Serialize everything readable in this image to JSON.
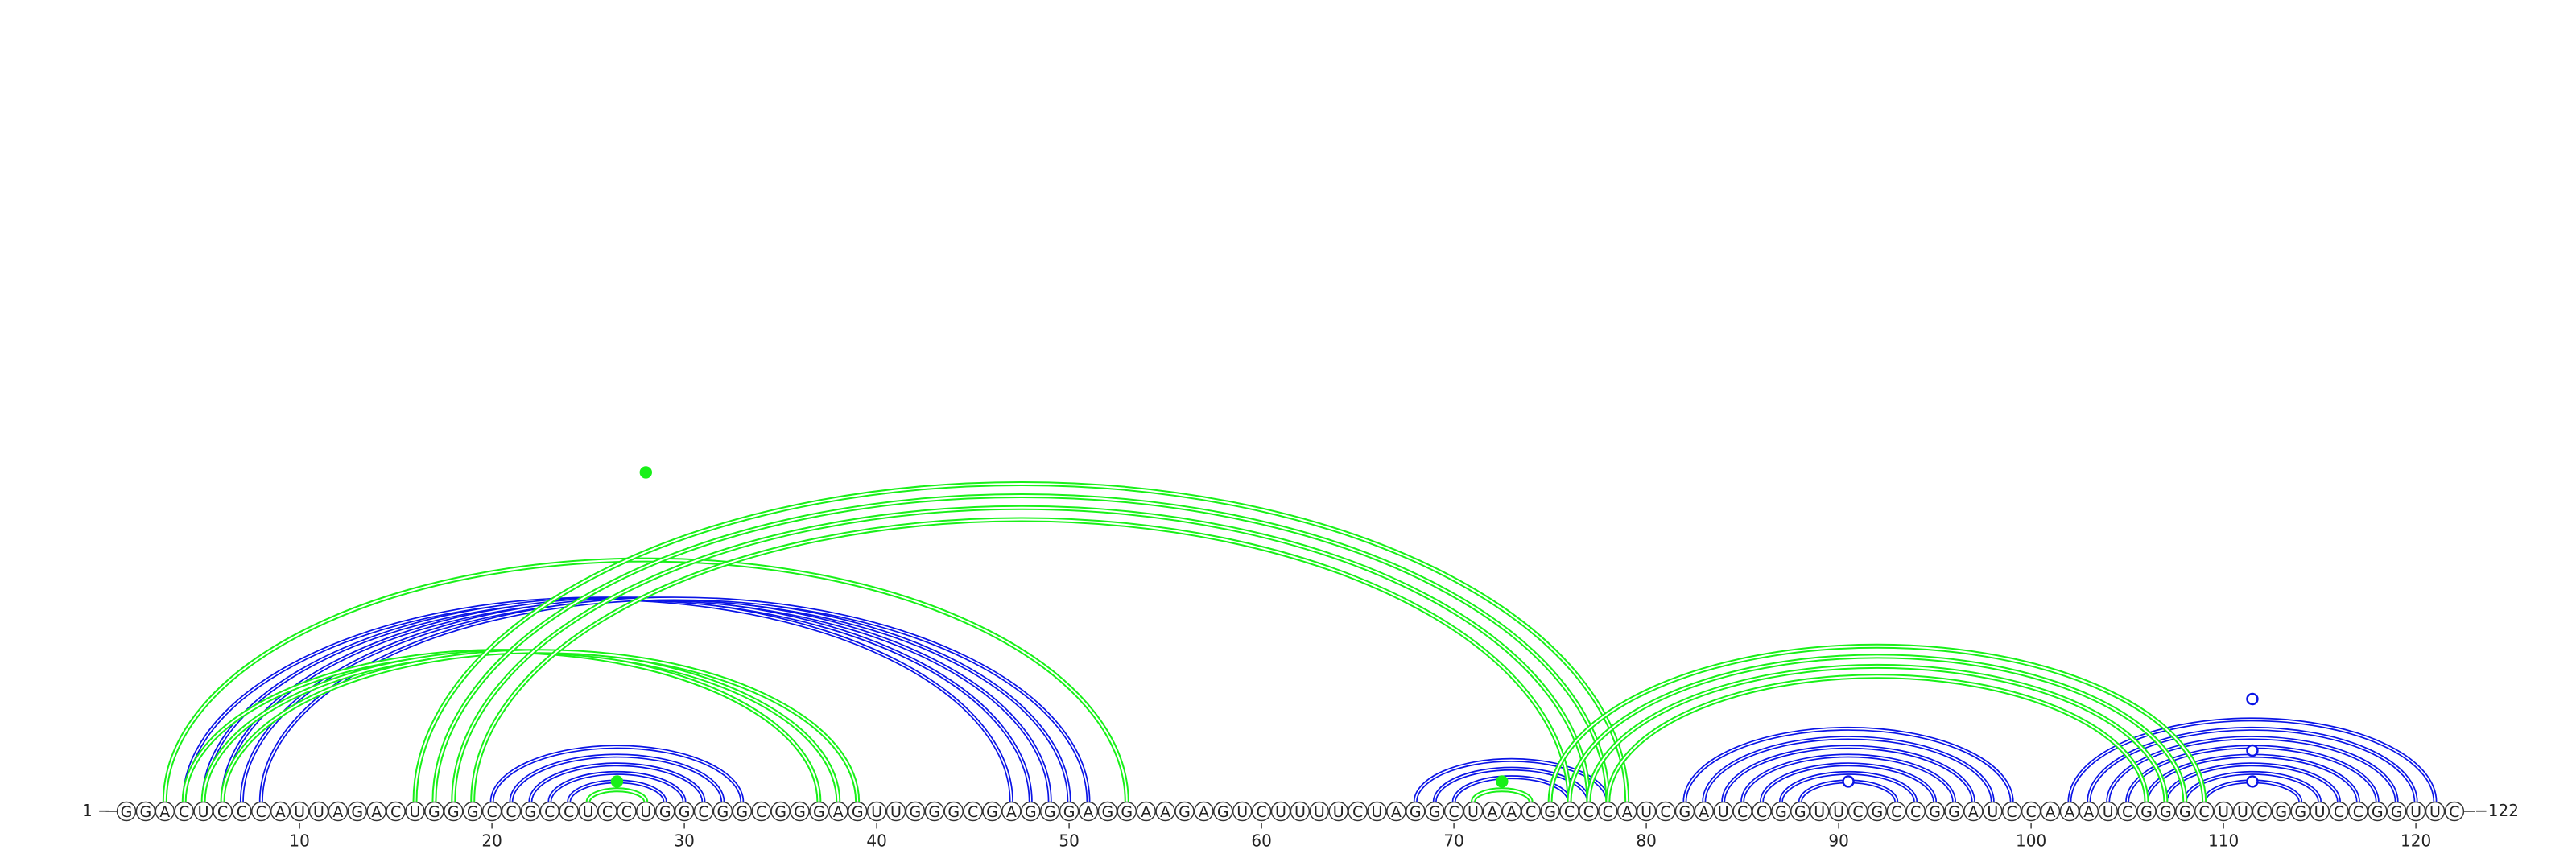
{
  "sequence": "GGACUCCCAUUAGACUGGGCCGCCUCCUGGCGGCGGGAGUUGGGCGAGGGAGGAAGAGUCUUUUCUAGGCUAACGCCCAUCGAUCCGGUUCGCCGGAUCCAAAUCGGGCUUCGGUCCGGUUC",
  "start_label": "1 −",
  "end_label": "−122",
  "ticks": [
    10,
    20,
    30,
    40,
    50,
    60,
    70,
    80,
    90,
    100,
    110,
    120
  ],
  "colors": {
    "blue": "#0a14e6",
    "green": "#18f018",
    "outline": "#333333"
  },
  "pairs": [
    {
      "i": 4,
      "j": 47,
      "color": "blue"
    },
    {
      "i": 5,
      "j": 48,
      "color": "blue"
    },
    {
      "i": 6,
      "j": 49,
      "color": "blue"
    },
    {
      "i": 7,
      "j": 50,
      "color": "blue"
    },
    {
      "i": 8,
      "j": 51,
      "color": "blue"
    },
    {
      "i": 20,
      "j": 33,
      "color": "blue"
    },
    {
      "i": 21,
      "j": 32,
      "color": "blue"
    },
    {
      "i": 22,
      "j": 31,
      "color": "blue"
    },
    {
      "i": 23,
      "j": 30,
      "color": "blue"
    },
    {
      "i": 24,
      "j": 29,
      "color": "blue"
    },
    {
      "i": 68,
      "j": 78,
      "color": "blue"
    },
    {
      "i": 69,
      "j": 77,
      "color": "blue"
    },
    {
      "i": 70,
      "j": 76,
      "color": "blue"
    },
    {
      "i": 82,
      "j": 99,
      "color": "blue"
    },
    {
      "i": 83,
      "j": 98,
      "color": "blue"
    },
    {
      "i": 84,
      "j": 97,
      "color": "blue"
    },
    {
      "i": 85,
      "j": 96,
      "color": "blue"
    },
    {
      "i": 86,
      "j": 95,
      "color": "blue"
    },
    {
      "i": 87,
      "j": 94,
      "color": "blue"
    },
    {
      "i": 88,
      "j": 93,
      "color": "blue"
    },
    {
      "i": 102,
      "j": 121,
      "color": "blue"
    },
    {
      "i": 103,
      "j": 120,
      "color": "blue"
    },
    {
      "i": 104,
      "j": 119,
      "color": "blue"
    },
    {
      "i": 105,
      "j": 118,
      "color": "blue"
    },
    {
      "i": 106,
      "j": 117,
      "color": "blue"
    },
    {
      "i": 107,
      "j": 116,
      "color": "blue"
    },
    {
      "i": 108,
      "j": 115,
      "color": "blue"
    },
    {
      "i": 109,
      "j": 114,
      "color": "blue"
    },
    {
      "i": 3,
      "j": 53,
      "color": "green"
    },
    {
      "i": 4,
      "j": 37,
      "color": "green"
    },
    {
      "i": 5,
      "j": 38,
      "color": "green"
    },
    {
      "i": 6,
      "j": 39,
      "color": "green"
    },
    {
      "i": 16,
      "j": 79,
      "color": "green"
    },
    {
      "i": 17,
      "j": 78,
      "color": "green"
    },
    {
      "i": 18,
      "j": 77,
      "color": "green"
    },
    {
      "i": 19,
      "j": 76,
      "color": "green"
    },
    {
      "i": 25,
      "j": 28,
      "color": "green"
    },
    {
      "i": 71,
      "j": 74,
      "color": "green"
    },
    {
      "i": 75,
      "j": 109,
      "color": "green"
    },
    {
      "i": 76,
      "j": 108,
      "color": "green"
    },
    {
      "i": 77,
      "j": 107,
      "color": "green"
    },
    {
      "i": 78,
      "j": 106,
      "color": "green"
    }
  ],
  "markers": [
    {
      "pos": 28,
      "height": 0.64,
      "color": "green",
      "filled": true
    },
    {
      "pos": 26.5,
      "height": 0.04,
      "color": "green",
      "filled": true
    },
    {
      "pos": 72.5,
      "height": 0.04,
      "color": "green",
      "filled": true
    },
    {
      "pos": 90.5,
      "height": 0.04,
      "color": "blue",
      "filled": false
    },
    {
      "pos": 111.5,
      "height": 0.04,
      "color": "blue",
      "filled": false
    },
    {
      "pos": 111.5,
      "height": 0.1,
      "color": "blue",
      "filled": false
    },
    {
      "pos": 111.5,
      "height": 0.2,
      "color": "blue",
      "filled": false
    }
  ]
}
